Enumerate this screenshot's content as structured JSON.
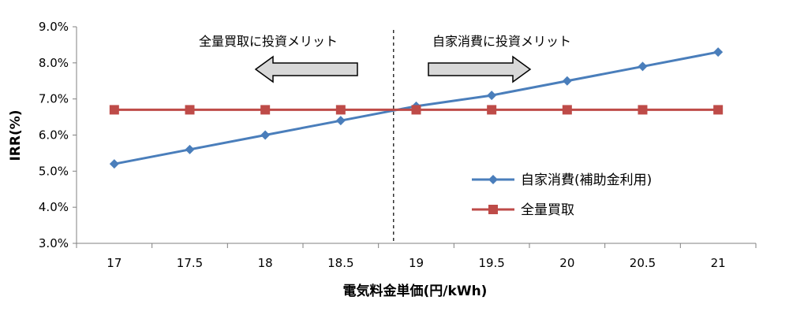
{
  "chart_data": {
    "type": "line",
    "x": [
      17,
      17.5,
      18,
      18.5,
      19,
      19.5,
      20,
      20.5,
      21
    ],
    "x_tick_labels": [
      "17",
      "17.5",
      "18",
      "18.5",
      "19",
      "19.5",
      "20",
      "20.5",
      "21"
    ],
    "xlim": [
      17,
      21
    ],
    "xlabel": "電気料金単価(円/kWh)",
    "ylabel": "IRR(%)",
    "ylim": [
      3.0,
      9.0
    ],
    "y_ticks": [
      3.0,
      4.0,
      5.0,
      6.0,
      7.0,
      8.0,
      9.0
    ],
    "y_tick_labels": [
      "3.0%",
      "4.0%",
      "5.0%",
      "6.0%",
      "7.0%",
      "8.0%",
      "9.0%"
    ],
    "grid": false,
    "legend_position": "right",
    "series": [
      {
        "name": "自家消費(補助金利用)",
        "color": "#4a7ebb",
        "marker": "diamond",
        "values": [
          5.2,
          5.6,
          6.0,
          6.4,
          6.8,
          7.1,
          7.5,
          7.9,
          8.3
        ]
      },
      {
        "name": "全量買取",
        "color": "#be4b48",
        "marker": "square",
        "values": [
          6.7,
          6.7,
          6.7,
          6.7,
          6.7,
          6.7,
          6.7,
          6.7,
          6.7
        ]
      }
    ],
    "breakeven_x": 18.85,
    "annotations": {
      "left_arrow": "全量買取に投資メリット",
      "right_arrow": "自家消費に投資メリット"
    }
  }
}
